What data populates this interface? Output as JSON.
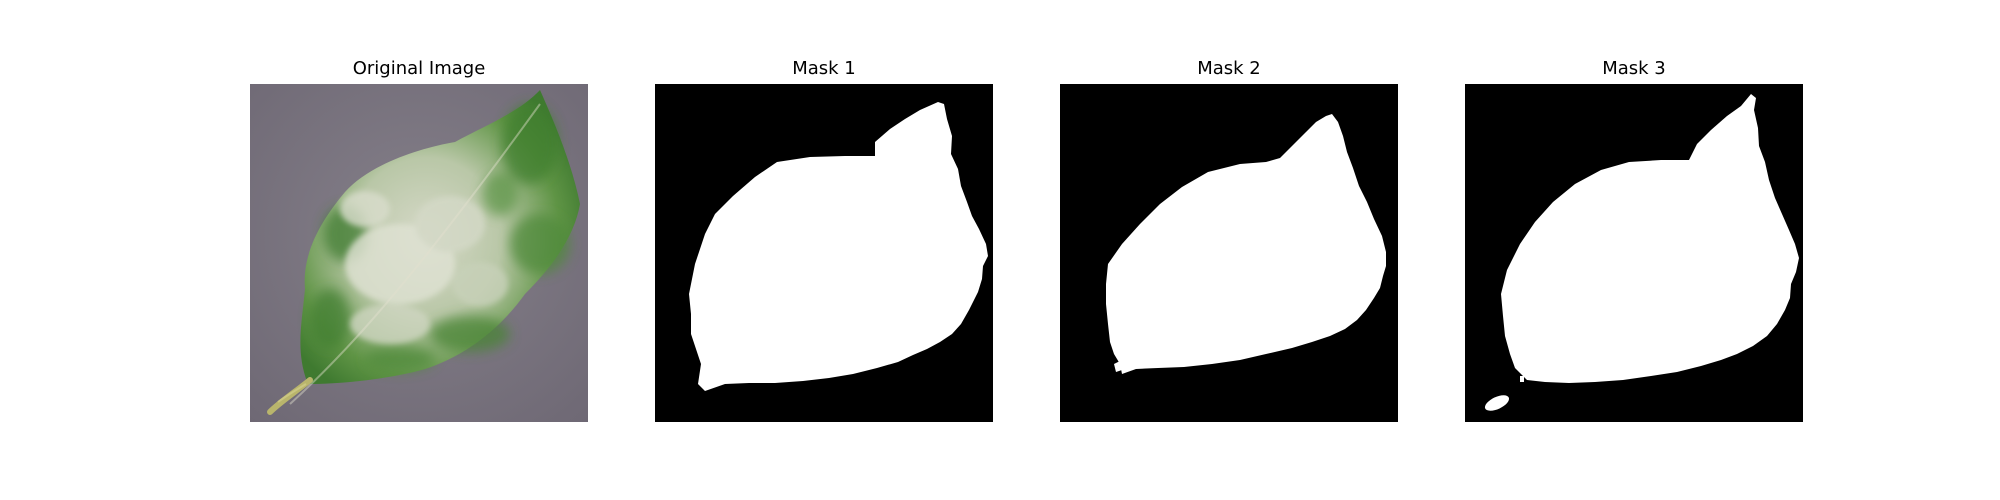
{
  "figure": {
    "panels": [
      {
        "title": "Original Image",
        "kind": "photo",
        "subject": "leaf-photo"
      },
      {
        "title": "Mask 1",
        "kind": "binary-mask"
      },
      {
        "title": "Mask 2",
        "kind": "binary-mask"
      },
      {
        "title": "Mask 3",
        "kind": "binary-mask"
      }
    ],
    "colors": {
      "background": "#ffffff",
      "mask_background": "#000000",
      "mask_foreground": "#ffffff",
      "photo_background": "#7d7582",
      "leaf_green": "#4f8a3a",
      "leaf_dark_green": "#2f6a2a",
      "mildew_white": "#d9dccd",
      "stem": "#b7b46a"
    }
  }
}
